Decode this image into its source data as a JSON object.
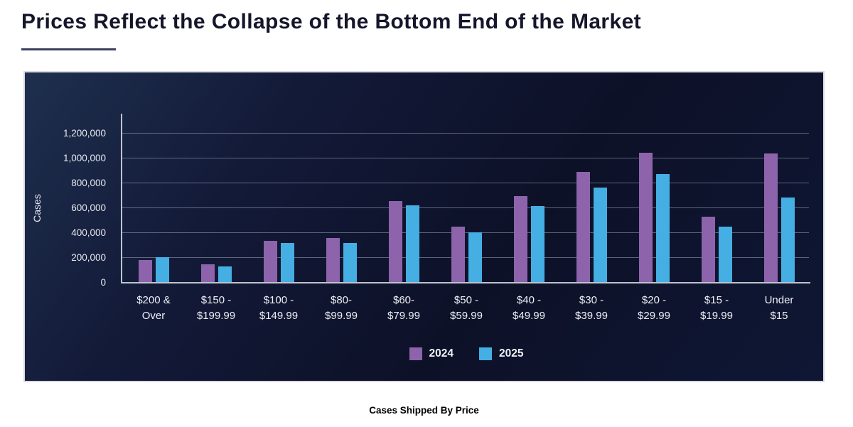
{
  "header": {
    "title": "Prices Reflect the Collapse of the Bottom End of the Market"
  },
  "caption": "Cases Shipped By Price",
  "colors": {
    "accent_2024": "#8d64ab",
    "accent_2025": "#45aee3",
    "panel_background_top": "#1e2f4e",
    "panel_background_bottom": "#0d1128",
    "axis": "#bfc3cf",
    "title_text": "#15152b",
    "chart_text": "#eef0f5"
  },
  "chart_data": {
    "type": "bar",
    "title": "Cases Shipped By Price",
    "xlabel": "",
    "ylabel": "Cases",
    "categories": [
      "$200 &\nOver",
      "$150 -\n$199.99",
      "$100 -\n$149.99",
      "$80-\n$99.99",
      "$60-\n$79.99",
      "$50 -\n$59.99",
      "$40 -\n$49.99",
      "$30 -\n$39.99",
      "$20 -\n$29.99",
      "$15 -\n$19.99",
      "Under\n$15"
    ],
    "series": [
      {
        "name": "2024",
        "color": "#8d64ab",
        "values": [
          175000,
          140000,
          330000,
          357000,
          652000,
          445000,
          690000,
          884000,
          1040000,
          524000,
          1034000
        ]
      },
      {
        "name": "2025",
        "color": "#45aee3",
        "values": [
          198000,
          128000,
          313000,
          315000,
          618000,
          400000,
          612000,
          760000,
          870000,
          448000,
          680000
        ]
      }
    ],
    "ylim": [
      0,
      1340000
    ],
    "yticks": [
      0,
      200000,
      400000,
      600000,
      800000,
      1000000,
      1200000
    ],
    "ytick_labels": [
      "0",
      "200,000",
      "400,000",
      "600,000",
      "800,000",
      "1,000,000",
      "1,200,000"
    ],
    "grid": true,
    "legend_position": "bottom"
  }
}
